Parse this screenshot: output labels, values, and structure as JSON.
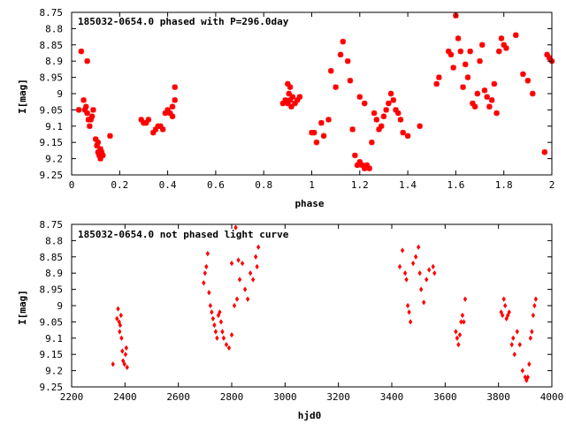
{
  "colors": {
    "points": "#ff0000",
    "frame": "#000000",
    "background": "#ffffff"
  },
  "chart_data": [
    {
      "type": "scatter",
      "title": "185032-0654.0 phased with P=296.0day",
      "xlabel": "phase",
      "ylabel": "I[mag]",
      "xlim": [
        0,
        2
      ],
      "ylim": [
        9.25,
        8.75
      ],
      "y_inverted": true,
      "grid": false,
      "marker": "asterisk",
      "xticks": [
        "0",
        "0.2",
        "0.4",
        "0.6",
        "0.8",
        "1",
        "1.2",
        "1.4",
        "1.6",
        "1.8",
        "2"
      ],
      "yticks": [
        "8.75",
        "8.8",
        "8.85",
        "8.9",
        "8.95",
        "9",
        "9.05",
        "9.1",
        "9.15",
        "9.2",
        "9.25"
      ],
      "series": [
        {
          "x": [
            0.03,
            0.04,
            0.05,
            0.055,
            0.06,
            0.065,
            0.07,
            0.075,
            0.08,
            0.085,
            0.09,
            0.065,
            0.1,
            0.105,
            0.11,
            0.115,
            0.12,
            0.125,
            0.11,
            0.12,
            0.13,
            0.16,
            0.29,
            0.3,
            0.31,
            0.32,
            0.34,
            0.35,
            0.36,
            0.37,
            0.38,
            0.39,
            0.4,
            0.41,
            0.42,
            0.42,
            0.43,
            0.43,
            0.88,
            0.89,
            0.9,
            0.9,
            0.905,
            0.91,
            0.91,
            0.915,
            0.92,
            0.93,
            0.94,
            0.95,
            1.0,
            1.01,
            1.02,
            1.04,
            1.05,
            1.07,
            1.08,
            1.1,
            1.12,
            1.13,
            1.15,
            1.16,
            1.17,
            1.18,
            1.19,
            1.2,
            1.21,
            1.22,
            1.23,
            1.24,
            1.2,
            1.22,
            1.25,
            1.26,
            1.27,
            1.28,
            1.29,
            1.3,
            1.31,
            1.32,
            1.33,
            1.34,
            1.35,
            1.36,
            1.37,
            1.38,
            1.4,
            1.45,
            1.52,
            1.53,
            1.57,
            1.58,
            1.59,
            1.6,
            1.61,
            1.62,
            1.63,
            1.64,
            1.65,
            1.66,
            1.67,
            1.68,
            1.69,
            1.7,
            1.71,
            1.72,
            1.73,
            1.74,
            1.75,
            1.76,
            1.77,
            1.78,
            1.79,
            1.8,
            1.81,
            1.85,
            1.88,
            1.9,
            1.92,
            1.97,
            1.98,
            1.99,
            2.0
          ],
          "y": [
            9.05,
            8.87,
            9.02,
            9.05,
            9.04,
            9.06,
            9.08,
            9.1,
            9.08,
            9.07,
            9.05,
            8.9,
            9.14,
            9.16,
            9.18,
            9.19,
            9.2,
            9.18,
            9.15,
            9.17,
            9.19,
            9.13,
            9.08,
            9.09,
            9.09,
            9.08,
            9.12,
            9.11,
            9.1,
            9.1,
            9.11,
            9.06,
            9.05,
            9.06,
            9.07,
            9.04,
            9.02,
            8.98,
            9.03,
            9.02,
            9.03,
            8.97,
            9.0,
            8.98,
            9.02,
            9.04,
            9.01,
            9.03,
            9.02,
            9.01,
            9.12,
            9.12,
            9.15,
            9.09,
            9.13,
            9.08,
            8.93,
            8.98,
            8.88,
            8.84,
            8.9,
            8.96,
            9.11,
            9.19,
            9.22,
            9.21,
            9.22,
            9.23,
            9.22,
            9.23,
            9.01,
            9.03,
            9.15,
            9.06,
            9.08,
            9.11,
            9.1,
            9.07,
            9.05,
            9.03,
            9.0,
            9.02,
            9.05,
            9.06,
            9.08,
            9.12,
            9.13,
            9.1,
            8.97,
            8.95,
            8.87,
            8.88,
            8.92,
            8.76,
            8.83,
            8.87,
            8.98,
            8.91,
            8.95,
            8.87,
            9.03,
            9.04,
            9.0,
            8.9,
            8.85,
            8.99,
            9.01,
            9.04,
            9.02,
            8.97,
            9.06,
            8.87,
            8.83,
            8.85,
            8.86,
            8.82,
            8.94,
            8.96,
            9.0,
            9.18,
            8.88,
            8.89,
            8.9
          ]
        }
      ]
    },
    {
      "type": "scatter",
      "title": "185032-0654.0 not phased light curve",
      "xlabel": "hjd0",
      "ylabel": "I[mag]",
      "xlim": [
        2200,
        4000
      ],
      "ylim": [
        9.25,
        8.75
      ],
      "y_inverted": true,
      "grid": false,
      "marker": "diamond",
      "xticks": [
        "2200",
        "2400",
        "2600",
        "2800",
        "3000",
        "3200",
        "3400",
        "3600",
        "3800",
        "4000"
      ],
      "yticks": [
        "8.75",
        "8.8",
        "8.85",
        "8.9",
        "8.95",
        "9",
        "9.05",
        "9.1",
        "9.15",
        "9.2",
        "9.25"
      ],
      "series": [
        {
          "x": [
            2355,
            2370,
            2374,
            2378,
            2380,
            2382,
            2385,
            2387,
            2390,
            2393,
            2398,
            2402,
            2405,
            2408,
            2695,
            2700,
            2705,
            2710,
            2715,
            2720,
            2725,
            2730,
            2735,
            2740,
            2745,
            2750,
            2755,
            2760,
            2765,
            2770,
            2780,
            2790,
            2800,
            2810,
            2820,
            2830,
            2840,
            2850,
            2860,
            2870,
            2880,
            2890,
            2895,
            2900,
            2800,
            2815,
            2825,
            3430,
            3440,
            3450,
            3455,
            3460,
            3465,
            3470,
            3480,
            3490,
            3500,
            3505,
            3510,
            3520,
            3530,
            3540,
            3555,
            3560,
            3640,
            3645,
            3650,
            3655,
            3660,
            3665,
            3670,
            3675,
            3810,
            3815,
            3820,
            3825,
            3830,
            3835,
            3840,
            3850,
            3855,
            3860,
            3870,
            3880,
            3890,
            3900,
            3905,
            3910,
            3915,
            3920,
            3925,
            3930,
            3935,
            3940
          ],
          "y": [
            9.18,
            9.04,
            9.01,
            9.05,
            9.08,
            9.06,
            9.03,
            9.1,
            9.14,
            9.17,
            9.18,
            9.15,
            9.13,
            9.19,
            8.93,
            8.9,
            8.88,
            8.84,
            8.96,
            9.0,
            9.02,
            9.04,
            9.06,
            9.08,
            9.1,
            9.03,
            9.02,
            9.05,
            9.08,
            9.1,
            9.12,
            9.13,
            9.09,
            9.0,
            8.98,
            8.92,
            8.87,
            8.95,
            8.98,
            8.9,
            8.92,
            8.85,
            8.88,
            8.82,
            8.87,
            8.76,
            8.86,
            8.88,
            8.83,
            8.9,
            8.92,
            9.0,
            9.02,
            9.05,
            8.87,
            8.85,
            8.82,
            8.9,
            8.95,
            8.99,
            8.92,
            8.89,
            8.88,
            8.9,
            9.08,
            9.1,
            9.12,
            9.09,
            9.05,
            9.03,
            9.05,
            8.98,
            9.02,
            9.03,
            8.98,
            9.0,
            9.04,
            9.03,
            9.02,
            9.12,
            9.1,
            9.15,
            9.08,
            9.12,
            9.2,
            9.22,
            9.23,
            9.22,
            9.18,
            9.1,
            9.08,
            9.03,
            9.0,
            8.98
          ]
        }
      ]
    }
  ]
}
